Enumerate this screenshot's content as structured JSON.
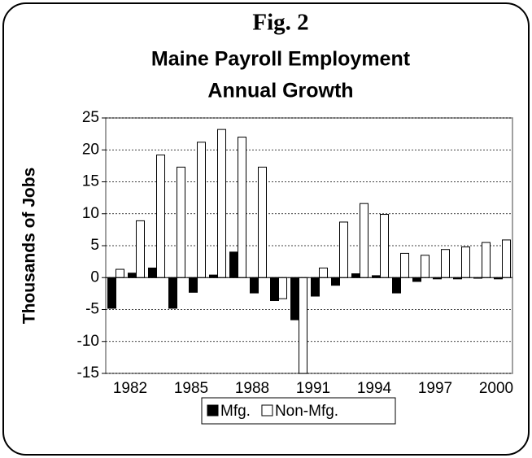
{
  "chart_data": {
    "type": "bar",
    "title": "Fig. 2",
    "subtitle": [
      "Maine Payroll Employment",
      "Annual Growth"
    ],
    "y_label": "Thousands of Jobs",
    "categories": [
      "1982",
      null,
      null,
      "1985",
      null,
      null,
      "1988",
      null,
      null,
      "1991",
      null,
      null,
      "1994",
      null,
      null,
      "1997",
      null,
      null,
      "2000",
      null
    ],
    "series": [
      {
        "name": "Mfg.",
        "color": "#000000",
        "values": [
          -4.8,
          0.7,
          1.5,
          -4.8,
          -2.3,
          0.4,
          4,
          -2.4,
          -3.6,
          -6.6,
          -2.9,
          -1.2,
          0.6,
          0.3,
          -2.4,
          -0.6,
          -0.2,
          -0.2,
          -0.1,
          -0.2
        ]
      },
      {
        "name": "Non-Mfg.",
        "color": "#ffffff",
        "values": [
          1.3,
          8.9,
          19.2,
          17.3,
          21.2,
          23.2,
          22,
          17.3,
          -3.3,
          -15,
          1.5,
          8.7,
          11.6,
          9.9,
          3.8,
          3.5,
          4.4,
          4.8,
          5.5,
          5.9
        ]
      }
    ],
    "ylim": [
      -15,
      25
    ],
    "yticks": [
      -15,
      -10,
      -5,
      0,
      5,
      10,
      15,
      20,
      25
    ],
    "grid": true,
    "legend": "bottom"
  }
}
